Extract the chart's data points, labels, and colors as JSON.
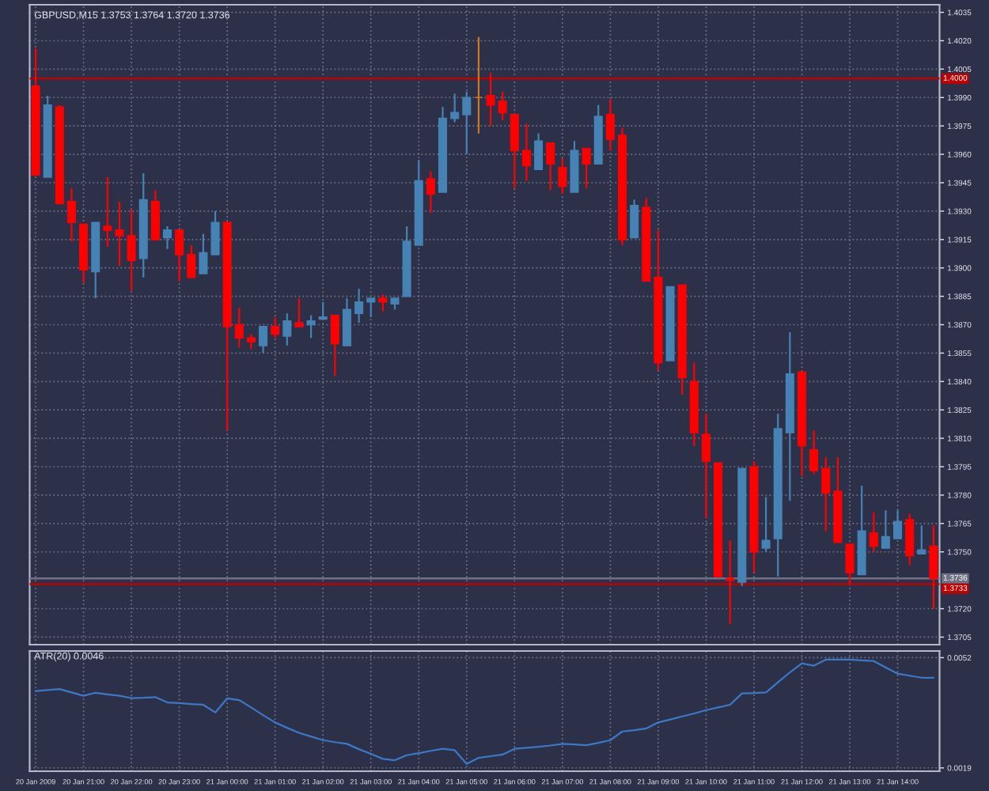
{
  "chart_data": [
    {
      "type": "candlestick",
      "title": "GBPUSD,M15 1.3753 1.3764 1.3720 1.3736",
      "categories": [
        null,
        null,
        null,
        null,
        null,
        null,
        null,
        null,
        null,
        null,
        null,
        null,
        null,
        null,
        null,
        null,
        null,
        null,
        null,
        null,
        null,
        null,
        null,
        null,
        null,
        null,
        null,
        null,
        null,
        null,
        null,
        null,
        null,
        null,
        null,
        null,
        null,
        null,
        null,
        null,
        null,
        null,
        null,
        null,
        null,
        null,
        null,
        null,
        null,
        null,
        null,
        null,
        null,
        null,
        null,
        null,
        null,
        null,
        null,
        null,
        null,
        null,
        null,
        null,
        null,
        null,
        null,
        null,
        null,
        null,
        null,
        null,
        null,
        null,
        null,
        null
      ],
      "ohlc": [
        [
          1.3996,
          1.4016,
          1.3949,
          1.3949
        ],
        [
          1.3948,
          1.3991,
          1.3948,
          1.3986
        ],
        [
          1.3985,
          1.3986,
          1.3934,
          1.3934
        ],
        [
          1.3935,
          1.3942,
          1.3914,
          1.3924
        ],
        [
          1.3923,
          1.3923,
          1.3892,
          1.3899
        ],
        [
          1.3898,
          1.3924,
          1.3884,
          1.3924
        ],
        [
          1.3922,
          1.3948,
          1.3911,
          1.392
        ],
        [
          1.392,
          1.3935,
          1.3901,
          1.3917
        ],
        [
          1.3917,
          1.3931,
          1.3888,
          1.3904
        ],
        [
          1.3905,
          1.395,
          1.3895,
          1.3936
        ],
        [
          1.3935,
          1.3941,
          1.3915,
          1.3915
        ],
        [
          1.3916,
          1.3922,
          1.391,
          1.392
        ],
        [
          1.392,
          1.392,
          1.3893,
          1.3907
        ],
        [
          1.3907,
          1.3912,
          1.3895,
          1.3895
        ],
        [
          1.3897,
          1.3918,
          1.3897,
          1.3908
        ],
        [
          1.3907,
          1.393,
          1.3907,
          1.3924
        ],
        [
          1.3924,
          1.3924,
          1.3814,
          1.3869
        ],
        [
          1.387,
          1.3879,
          1.3858,
          1.3863
        ],
        [
          1.3863,
          1.3865,
          1.3857,
          1.3861
        ],
        [
          1.3859,
          1.3869,
          1.3855,
          1.3869
        ],
        [
          1.3869,
          1.3874,
          1.3863,
          1.3865
        ],
        [
          1.3864,
          1.3876,
          1.3859,
          1.3872
        ],
        [
          1.3871,
          1.3884,
          1.3869,
          1.3869
        ],
        [
          1.387,
          1.3875,
          1.3863,
          1.3872
        ],
        [
          1.3873,
          1.3882,
          1.3873,
          1.3874
        ],
        [
          1.3875,
          1.3875,
          1.3843,
          1.386
        ],
        [
          1.3859,
          1.3884,
          1.3859,
          1.3878
        ],
        [
          1.3876,
          1.3889,
          1.3871,
          1.3882
        ],
        [
          1.3882,
          1.3884,
          1.3874,
          1.3884
        ],
        [
          1.3884,
          1.3886,
          1.3877,
          1.3882
        ],
        [
          1.3881,
          1.3884,
          1.3878,
          1.3884
        ],
        [
          1.3885,
          1.3922,
          1.3885,
          1.3914
        ],
        [
          1.3912,
          1.3957,
          1.3912,
          1.3946
        ],
        [
          1.3947,
          1.3951,
          1.3929,
          1.3939
        ],
        [
          1.394,
          1.3985,
          1.394,
          1.3979
        ],
        [
          1.3979,
          1.3992,
          1.3977,
          1.3982
        ],
        [
          1.3981,
          1.3993,
          1.396,
          1.399
        ],
        [
          1.399,
          1.4022,
          1.3971,
          1.399
        ],
        [
          1.3991,
          1.4003,
          1.3975,
          1.3986
        ],
        [
          1.3988,
          1.3993,
          1.3978,
          1.3982
        ],
        [
          1.3981,
          1.3981,
          1.3942,
          1.3962
        ],
        [
          1.3962,
          1.3976,
          1.3946,
          1.3954
        ],
        [
          1.3952,
          1.3971,
          1.3952,
          1.3967
        ],
        [
          1.3966,
          1.3966,
          1.3941,
          1.3955
        ],
        [
          1.3953,
          1.3958,
          1.3939,
          1.3943
        ],
        [
          1.394,
          1.3967,
          1.394,
          1.3962
        ],
        [
          1.3963,
          1.3963,
          1.3942,
          1.3955
        ],
        [
          1.3955,
          1.3986,
          1.3955,
          1.398
        ],
        [
          1.3981,
          1.3989,
          1.3962,
          1.3968
        ],
        [
          1.397,
          1.3974,
          1.3912,
          1.3915
        ],
        [
          1.3916,
          1.3936,
          1.3916,
          1.3933
        ],
        [
          1.3932,
          1.3937,
          1.3893,
          1.3893
        ],
        [
          1.3895,
          1.392,
          1.3846,
          1.385
        ],
        [
          1.3851,
          1.389,
          1.3851,
          1.389
        ],
        [
          1.3891,
          1.3891,
          1.3833,
          1.3842
        ],
        [
          1.384,
          1.385,
          1.3806,
          1.3813
        ],
        [
          1.3812,
          1.3823,
          1.3768,
          1.3798
        ],
        [
          1.3797,
          1.3797,
          1.3737,
          1.3737
        ],
        [
          1.3736,
          1.3756,
          1.3712,
          1.3735
        ],
        [
          1.3734,
          1.3794,
          1.3732,
          1.3794
        ],
        [
          1.3795,
          1.3798,
          1.3739,
          1.375
        ],
        [
          1.3752,
          1.3779,
          1.375,
          1.3756
        ],
        [
          1.3757,
          1.3823,
          1.3737,
          1.3815
        ],
        [
          1.3813,
          1.3866,
          1.3777,
          1.3844
        ],
        [
          1.3845,
          1.3845,
          1.379,
          1.3806
        ],
        [
          1.3804,
          1.3814,
          1.3791,
          1.3793
        ],
        [
          1.3794,
          1.38,
          1.3761,
          1.3781
        ],
        [
          1.3782,
          1.38,
          1.3755,
          1.3755
        ],
        [
          1.3754,
          1.3754,
          1.3733,
          1.3739
        ],
        [
          1.3738,
          1.3785,
          1.3738,
          1.3761
        ],
        [
          1.376,
          1.3771,
          1.375,
          1.3753
        ],
        [
          1.3752,
          1.3772,
          1.3752,
          1.3758
        ],
        [
          1.3757,
          1.3772,
          1.3757,
          1.3766
        ],
        [
          1.3767,
          1.377,
          1.3743,
          1.3748
        ],
        [
          1.3749,
          1.3764,
          1.3749,
          1.3751
        ],
        [
          1.3753,
          1.3764,
          1.372,
          1.3736
        ]
      ],
      "colors": [
        "#ff0000",
        "#4682b4",
        "#ff0000",
        "#ff0000",
        "#ff0000",
        "#4682b4",
        "#ff0000",
        "#ff0000",
        "#ff0000",
        "#4682b4",
        "#ff0000",
        "#4682b4",
        "#ff0000",
        "#ff0000",
        "#4682b4",
        "#4682b4",
        "#ff0000",
        "#ff0000",
        "#ff0000",
        "#4682b4",
        "#ff0000",
        "#4682b4",
        "#ff0000",
        "#4682b4",
        "#4682b4",
        "#ff0000",
        "#4682b4",
        "#4682b4",
        "#4682b4",
        "#ff0000",
        "#4682b4",
        "#4682b4",
        "#4682b4",
        "#ff0000",
        "#4682b4",
        "#4682b4",
        "#4682b4",
        "#c8781e",
        "#ff0000",
        "#ff0000",
        "#ff0000",
        "#ff0000",
        "#4682b4",
        "#ff0000",
        "#ff0000",
        "#4682b4",
        "#ff0000",
        "#4682b4",
        "#ff0000",
        "#ff0000",
        "#4682b4",
        "#ff0000",
        "#ff0000",
        "#4682b4",
        "#ff0000",
        "#ff0000",
        "#ff0000",
        "#ff0000",
        "#ff0000",
        "#4682b4",
        "#ff0000",
        "#4682b4",
        "#4682b4",
        "#4682b4",
        "#ff0000",
        "#ff0000",
        "#ff0000",
        "#ff0000",
        "#ff0000",
        "#4682b4",
        "#ff0000",
        "#4682b4",
        "#4682b4",
        "#ff0000",
        "#4682b4",
        "#ff0000"
      ],
      "ylim": [
        1.3701,
        1.4039
      ],
      "yticks": [
        1.4035,
        {
          "value": 1.402,
          "label": "1.4020"
        },
        1.4005,
        {
          "value": 1.399,
          "label": "1.3990"
        },
        1.3975,
        {
          "value": 1.396,
          "label": "1.3960"
        },
        1.3945,
        {
          "value": 1.393,
          "label": "1.3930"
        },
        1.3915,
        {
          "value": 1.39,
          "label": "1.3900"
        },
        1.3885,
        {
          "value": 1.387,
          "label": "1.3870"
        },
        1.3855,
        {
          "value": 1.384,
          "label": "1.3840"
        },
        1.3825,
        {
          "value": 1.381,
          "label": "1.3810"
        },
        1.3795,
        {
          "value": 1.378,
          "label": "1.3780"
        },
        1.3765,
        {
          "value": 1.375,
          "label": "1.3750"
        },
        {
          "value": 1.372,
          "label": "1.3720"
        },
        1.3705
      ],
      "tick_labels": "y",
      "grid": true,
      "ref_lines": [
        {
          "axis": "y",
          "value": 1.4,
          "label": "1.4000",
          "color": "#c00000"
        },
        {
          "axis": "y",
          "value": 1.3736,
          "label": "1.3736",
          "color": "#6e7284"
        },
        {
          "axis": "y",
          "value": 1.3733,
          "label": "1.3733",
          "color": "#c00000"
        }
      ]
    },
    {
      "type": "line",
      "title": "ATR(20) 0.0046",
      "categories": [
        "20 Jan 2009",
        null,
        null,
        null,
        "20 Jan 21:00",
        null,
        null,
        null,
        "20 Jan 22:00",
        null,
        null,
        null,
        "20 Jan 23:00",
        null,
        null,
        null,
        "21 Jan 00:00",
        null,
        null,
        null,
        "21 Jan 01:00",
        null,
        null,
        null,
        "21 Jan 02:00",
        null,
        null,
        null,
        "21 Jan 03:00",
        null,
        null,
        null,
        "21 Jan 04:00",
        null,
        null,
        null,
        "21 Jan 05:00",
        null,
        null,
        null,
        "21 Jan 06:00",
        null,
        null,
        null,
        "21 Jan 07:00",
        null,
        null,
        null,
        "21 Jan 08:00",
        null,
        null,
        null,
        "21 Jan 09:00",
        null,
        null,
        null,
        "21 Jan 10:00",
        null,
        null,
        null,
        "21 Jan 11:00",
        null,
        null,
        null,
        "21 Jan 12:00",
        null,
        null,
        null,
        "21 Jan 13:00",
        null,
        null,
        null,
        "21 Jan 14:00",
        null,
        null,
        null
      ],
      "series": [
        {
          "color": "#3c78c8",
          "values": [
            0.0042,
            0.00423,
            0.00426,
            0.00416,
            0.00406,
            0.00415,
            0.0041,
            0.00406,
            0.00399,
            0.004,
            0.00402,
            0.00386,
            0.00384,
            0.00381,
            0.00379,
            0.00356,
            0.00398,
            0.00393,
            0.00371,
            0.00348,
            0.00326,
            0.0031,
            0.00295,
            0.00284,
            0.00273,
            0.00267,
            0.00262,
            0.00246,
            0.00232,
            0.00217,
            0.00213,
            0.00228,
            0.00234,
            0.00241,
            0.00247,
            0.00243,
            0.00202,
            0.0022,
            0.00225,
            0.0023,
            0.00247,
            0.0025,
            0.00253,
            0.00257,
            0.00262,
            0.0026,
            0.00258,
            0.00265,
            0.00273,
            0.00299,
            0.00303,
            0.00308,
            0.00326,
            0.00335,
            0.00344,
            0.00353,
            0.00363,
            0.00371,
            0.00379,
            0.00413,
            0.00414,
            0.00416,
            0.00446,
            0.00476,
            0.00503,
            0.00496,
            0.00514,
            0.00514,
            0.00514,
            0.00512,
            0.0051,
            0.00491,
            0.00472,
            0.00466,
            0.0046,
            0.0046
          ]
        }
      ],
      "ylim": [
        0.0018,
        0.0054
      ],
      "yticks": [
        0.0052,
        0.0019
      ],
      "grid": true
    }
  ]
}
